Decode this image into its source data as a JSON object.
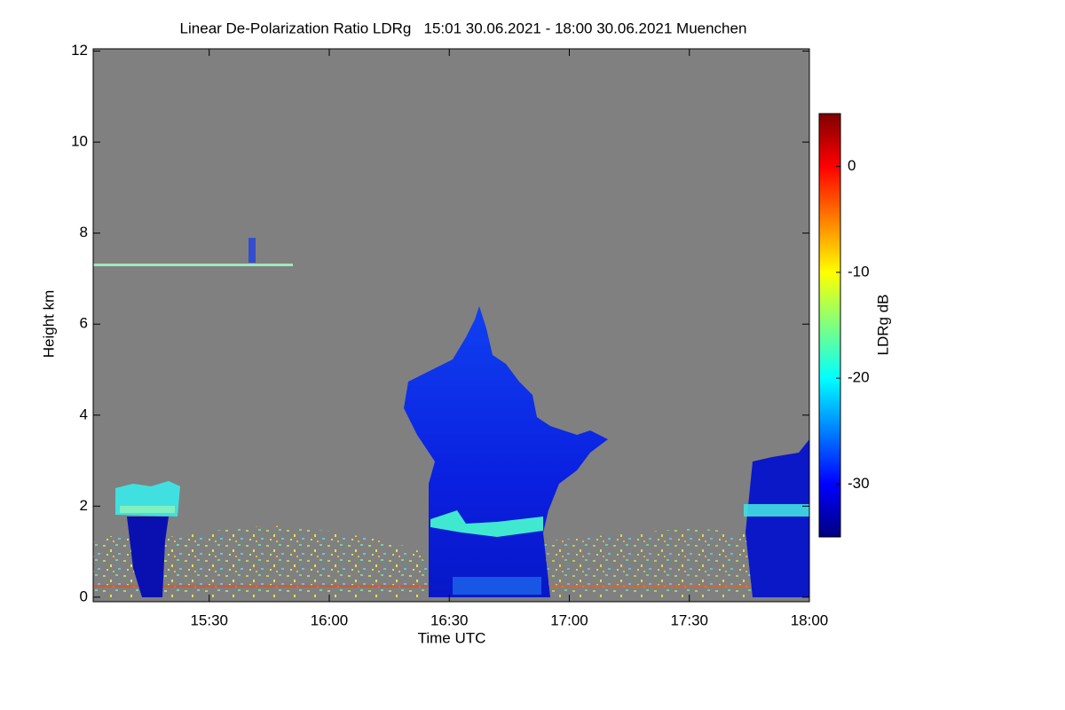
{
  "chart_data": {
    "type": "heatmap",
    "title": "Linear De-Polarization Ratio LDRg   15:01 30.06.2021 - 18:00 30.06.2021 Muenchen",
    "x_label": "Time UTC",
    "y_label": "Height km",
    "xlim": [
      "15:01",
      "18:00"
    ],
    "xticks": [
      "15:30",
      "16:00",
      "16:30",
      "17:00",
      "17:30",
      "18:00"
    ],
    "ylim": [
      -0.1,
      12.05
    ],
    "yticks": [
      0,
      2,
      4,
      6,
      8,
      10,
      12
    ],
    "colorbar": {
      "label": "LDRg dB",
      "lim": [
        -35,
        5
      ],
      "ticks": [
        0,
        -10,
        -20,
        -30
      ],
      "colormap": "jet"
    }
  }
}
